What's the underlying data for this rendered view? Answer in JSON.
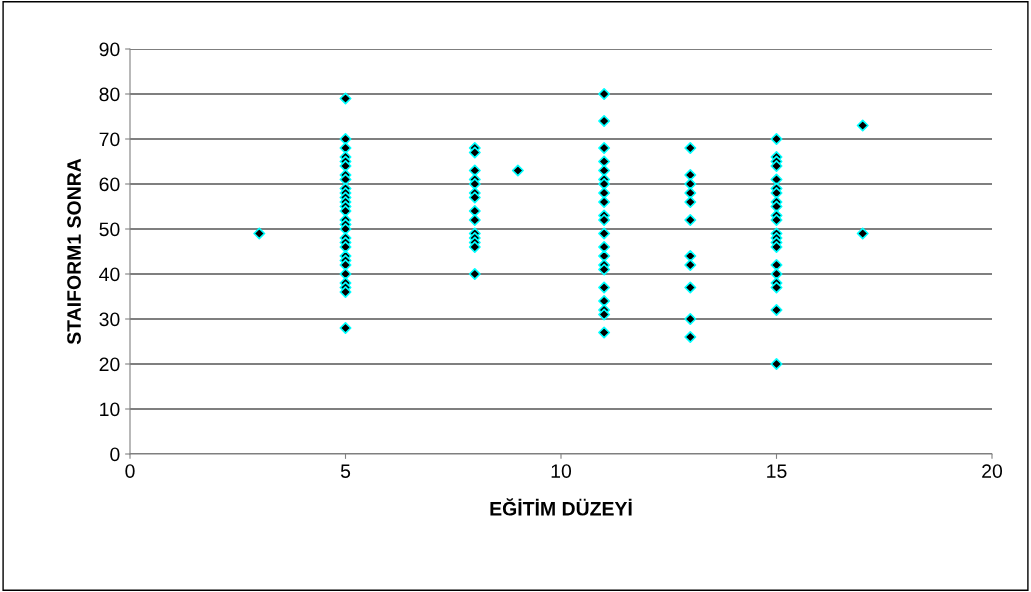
{
  "chart_data": {
    "type": "scatter",
    "xlabel": "EĞİTİM DÜZEYİ",
    "ylabel": "STAIFORM1 SONRA",
    "x": [
      3,
      5,
      5,
      5,
      5,
      5,
      5,
      5,
      5,
      5,
      5,
      5,
      5,
      5,
      5,
      5,
      5,
      5,
      5,
      5,
      5,
      5,
      5,
      5,
      5,
      5,
      5,
      5,
      5,
      8,
      8,
      8,
      8,
      8,
      8,
      8,
      8,
      8,
      8,
      8,
      8,
      8,
      8,
      9,
      11,
      11,
      11,
      11,
      11,
      11,
      11,
      11,
      11,
      11,
      11,
      11,
      11,
      11,
      11,
      11,
      11,
      11,
      11,
      11,
      11,
      13,
      13,
      13,
      13,
      13,
      13,
      13,
      13,
      13,
      13,
      13,
      15,
      15,
      15,
      15,
      15,
      15,
      15,
      15,
      15,
      15,
      15,
      15,
      15,
      15,
      15,
      15,
      15,
      15,
      15,
      15,
      15,
      17,
      17
    ],
    "values": [
      49,
      79,
      70,
      68,
      66,
      65,
      64,
      62,
      61,
      59,
      58,
      57,
      56,
      55,
      54,
      52,
      51,
      50,
      48,
      47,
      46,
      44,
      43,
      42,
      40,
      38,
      37,
      36,
      28,
      68,
      67,
      63,
      61,
      60,
      58,
      57,
      54,
      52,
      49,
      48,
      47,
      46,
      40,
      63,
      80,
      74,
      68,
      65,
      63,
      61,
      60,
      58,
      56,
      53,
      52,
      49,
      46,
      44,
      42,
      41,
      37,
      34,
      32,
      31,
      27,
      68,
      62,
      60,
      58,
      56,
      52,
      44,
      42,
      37,
      30,
      26,
      70,
      66,
      65,
      64,
      61,
      59,
      58,
      56,
      55,
      53,
      52,
      49,
      48,
      47,
      46,
      42,
      40,
      38,
      37,
      32,
      20,
      73,
      49
    ],
    "color": "#000000",
    "marker": "diamond",
    "xlim": [
      0,
      20
    ],
    "xticks": [
      0,
      5,
      10,
      15,
      20
    ],
    "ylim": [
      0,
      90
    ],
    "yticks": [
      0,
      10,
      20,
      30,
      40,
      50,
      60,
      70,
      80,
      90
    ],
    "grid": "y",
    "legend": false
  }
}
